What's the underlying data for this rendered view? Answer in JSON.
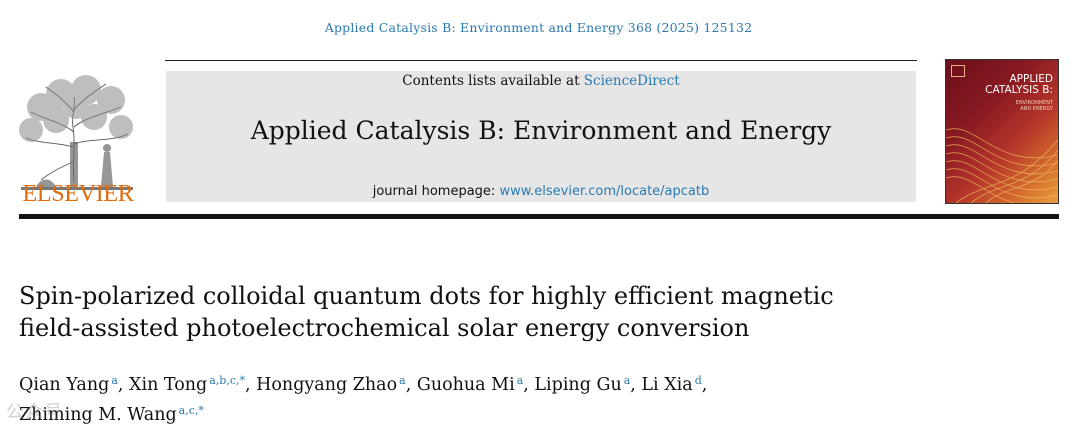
{
  "citation": "Applied Catalysis B: Environment and Energy 368 (2025) 125132",
  "publisher": {
    "name": "ELSEVIER"
  },
  "masthead": {
    "contents_prefix": "Contents lists available at ",
    "contents_link": "ScienceDirect",
    "journal_title": "Applied Catalysis B: Environment and Energy",
    "homepage_prefix": "journal homepage: ",
    "homepage_link": "www.elsevier.com/locate/apcatb"
  },
  "cover": {
    "title_line1": "APPLIED",
    "title_line2": "CATALYSIS B:",
    "subtitle_line1": "ENVIRONMENT",
    "subtitle_line2": "AND ENERGY"
  },
  "article": {
    "title_line1": "Spin-polarized colloidal quantum dots for highly efficient magnetic",
    "title_line2": "field-assisted photoelectrochemical solar energy conversion"
  },
  "authors": [
    {
      "name": "Qian Yang",
      "aff": "a",
      "sep": ", "
    },
    {
      "name": "Xin Tong",
      "aff": "a,b,c,*",
      "sep": ", "
    },
    {
      "name": "Hongyang Zhao",
      "aff": "a",
      "sep": ", "
    },
    {
      "name": "Guohua Mi",
      "aff": "a",
      "sep": ", "
    },
    {
      "name": "Liping Gu",
      "aff": "a",
      "sep": ", "
    },
    {
      "name": "Li Xia",
      "aff": "d",
      "sep": ","
    },
    {
      "name": "Zhiming M. Wang",
      "aff": "a,c,*",
      "sep": ""
    }
  ],
  "watermark": "公众号"
}
